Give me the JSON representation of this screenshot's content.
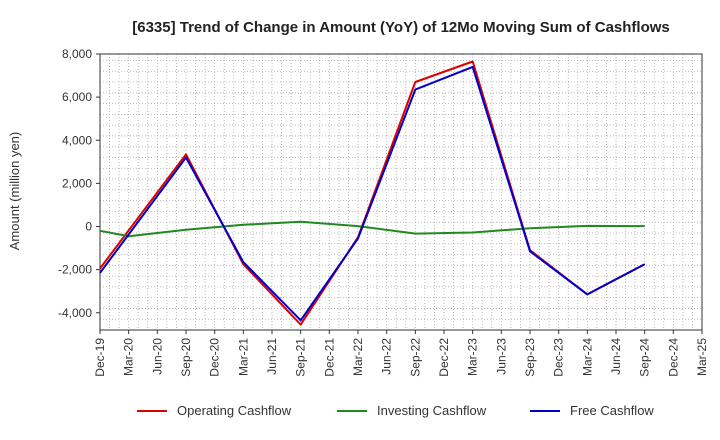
{
  "chart_data": {
    "type": "line",
    "title": "[6335]  Trend of Change in Amount (YoY) of 12Mo Moving Sum of Cashflows",
    "xlabel": "",
    "ylabel": "Amount (million yen)",
    "ylim": [
      -4800,
      8000
    ],
    "yticks": [
      -4000,
      -2000,
      0,
      2000,
      4000,
      6000,
      8000
    ],
    "ytick_labels": [
      "-4,000",
      "-2,000",
      "0",
      "2,000",
      "4,000",
      "6,000",
      "8,000"
    ],
    "categories": [
      "Dec-19",
      "Mar-20",
      "Jun-20",
      "Sep-20",
      "Dec-20",
      "Mar-21",
      "Jun-21",
      "Sep-21",
      "Dec-21",
      "Mar-22",
      "Jun-22",
      "Sep-22",
      "Dec-22",
      "Mar-23",
      "Jun-23",
      "Sep-23",
      "Dec-23",
      "Mar-24",
      "Jun-24",
      "Sep-24",
      "Dec-24",
      "Mar-25"
    ],
    "grid": true,
    "legend_position": "bottom",
    "series": [
      {
        "name": "Operating Cashflow",
        "color": "#dd0000",
        "points": [
          [
            0,
            -1950
          ],
          [
            3,
            3350
          ],
          [
            5,
            -1750
          ],
          [
            7,
            -4550
          ],
          [
            9,
            -500
          ],
          [
            11,
            6700
          ],
          [
            13,
            7650
          ],
          [
            15,
            -1100
          ],
          [
            17,
            -3150
          ],
          [
            19,
            -1750
          ]
        ]
      },
      {
        "name": "Investing Cashflow",
        "color": "#228822",
        "points": [
          [
            0,
            -200
          ],
          [
            1,
            -450
          ],
          [
            3,
            -150
          ],
          [
            5,
            80
          ],
          [
            7,
            220
          ],
          [
            9,
            20
          ],
          [
            11,
            -330
          ],
          [
            13,
            -280
          ],
          [
            15,
            -80
          ],
          [
            17,
            30
          ],
          [
            19,
            20
          ]
        ]
      },
      {
        "name": "Free Cashflow",
        "color": "#0000cc",
        "points": [
          [
            0,
            -2150
          ],
          [
            3,
            3200
          ],
          [
            5,
            -1650
          ],
          [
            7,
            -4350
          ],
          [
            9,
            -550
          ],
          [
            11,
            6350
          ],
          [
            13,
            7400
          ],
          [
            15,
            -1150
          ],
          [
            17,
            -3150
          ],
          [
            19,
            -1750
          ]
        ]
      }
    ]
  }
}
